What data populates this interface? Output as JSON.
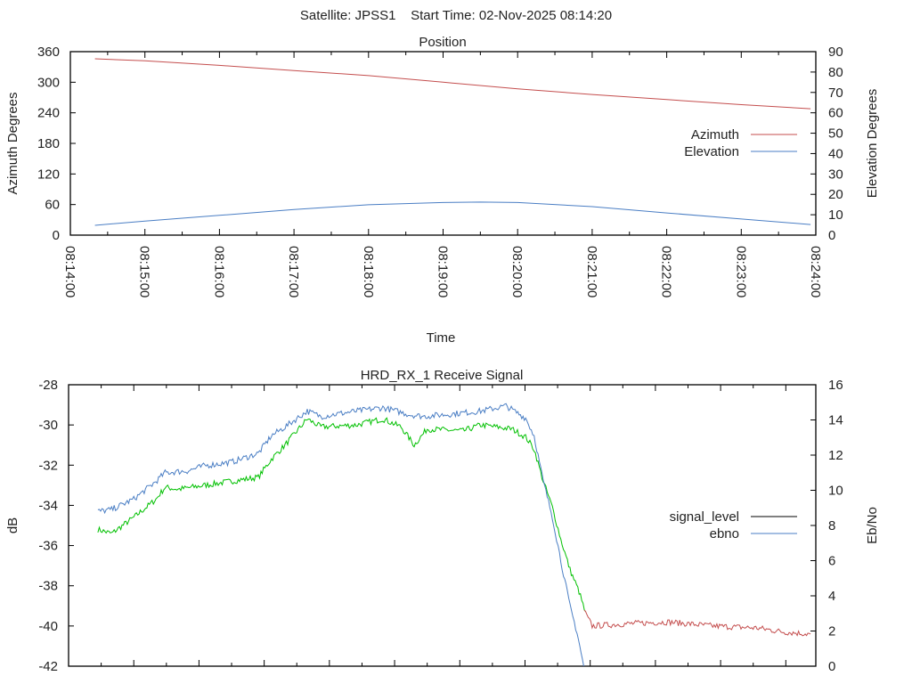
{
  "header": {
    "title": "Satellite: JPSS1    Start Time: 02-Nov-2025 08:14:20"
  },
  "colors": {
    "azimuth": "#c44e4e",
    "elevation": "#4a7ec4",
    "signal_locked": "#00c000",
    "signal_unlocked": "#c44e4e",
    "ebno": "#4a7ec4",
    "legend_signal": "#000000"
  },
  "chart_data": [
    {
      "type": "line",
      "title": "Position",
      "xlabel": "Time",
      "ylabel": "Azimuth Degrees",
      "y2label": "Elevation Degrees",
      "x_unit": "minutes after 08:14:00",
      "xlim": [
        0,
        10
      ],
      "ylim": [
        0,
        360
      ],
      "y2lim": [
        0,
        90
      ],
      "xticks": [
        0,
        1,
        2,
        3,
        4,
        5,
        6,
        7,
        8,
        9,
        10
      ],
      "xtick_labels": [
        "08:14:00",
        "08:15:00",
        "08:16:00",
        "08:17:00",
        "08:18:00",
        "08:19:00",
        "08:20:00",
        "08:21:00",
        "08:22:00",
        "08:23:00",
        "08:24:00"
      ],
      "yticks": [
        0,
        60,
        120,
        180,
        240,
        300,
        360
      ],
      "y2ticks": [
        0,
        10,
        20,
        30,
        40,
        50,
        60,
        70,
        80,
        90
      ],
      "legend": "right",
      "series": [
        {
          "name": "Azimuth",
          "axis": "y",
          "x": [
            0.33,
            1,
            2,
            3,
            4,
            5,
            6,
            7,
            8,
            9,
            9.93
          ],
          "values": [
            346,
            342,
            333,
            323,
            313,
            300,
            287,
            276,
            266,
            256,
            248
          ]
        },
        {
          "name": "Elevation",
          "axis": "y2",
          "x": [
            0.33,
            1,
            2,
            3,
            4,
            5,
            5.5,
            6,
            7,
            8,
            9,
            9.93
          ],
          "values": [
            4.8,
            6.9,
            9.7,
            12.6,
            14.9,
            16.0,
            16.2,
            16.0,
            14.0,
            10.9,
            7.9,
            5.2
          ]
        }
      ]
    },
    {
      "type": "line",
      "title": "HRD_RX_1 Receive Signal",
      "ylabel": "dB",
      "y2label": "Eb/No",
      "x_unit": "minutes",
      "xlim": [
        0,
        11.46
      ],
      "ylim": [
        -42,
        -28
      ],
      "y2lim": [
        0,
        16
      ],
      "xticks": [
        1,
        2,
        3,
        4,
        5,
        6,
        7,
        8,
        9,
        10,
        11
      ],
      "yticks": [
        -42,
        -40,
        -38,
        -36,
        -34,
        -32,
        -30,
        -28
      ],
      "y2ticks": [
        0,
        2,
        4,
        6,
        8,
        10,
        12,
        14,
        16
      ],
      "legend": "right",
      "series": [
        {
          "name": "signal_level",
          "axis": "y",
          "unlocked_after": 7.93,
          "x": [
            0.45,
            0.66,
            1.0,
            1.34,
            1.48,
            1.68,
            2.09,
            2.5,
            2.91,
            3.11,
            3.32,
            3.66,
            3.87,
            4.41,
            4.82,
            5.1,
            5.3,
            5.5,
            6.05,
            6.32,
            6.8,
            7.01,
            7.14,
            7.28,
            7.42,
            7.55,
            7.69,
            7.83,
            7.93,
            8.03,
            8.51,
            9.19,
            9.88,
            10.56,
            10.97,
            11.38
          ],
          "values": [
            -35.2,
            -35.4,
            -34.6,
            -33.7,
            -33.1,
            -33.2,
            -33.0,
            -32.8,
            -32.6,
            -31.7,
            -31.0,
            -29.7,
            -30.1,
            -30.0,
            -29.7,
            -30.1,
            -31.0,
            -30.2,
            -30.3,
            -30.0,
            -30.2,
            -30.6,
            -31.2,
            -32.8,
            -34.1,
            -35.7,
            -37.2,
            -38.3,
            -39.4,
            -40.0,
            -39.9,
            -39.8,
            -40.0,
            -40.1,
            -40.3,
            -40.4
          ]
        },
        {
          "name": "ebno",
          "axis": "y2",
          "x": [
            0.45,
            0.66,
            1.0,
            1.34,
            1.48,
            1.82,
            2.09,
            2.5,
            2.91,
            3.11,
            3.32,
            3.66,
            3.87,
            4.41,
            4.82,
            5.23,
            5.44,
            5.77,
            6.32,
            6.71,
            7.01,
            7.14,
            7.28,
            7.42,
            7.55,
            7.69,
            7.8,
            7.9
          ],
          "values": [
            8.8,
            8.9,
            9.5,
            10.5,
            11.0,
            11.1,
            11.4,
            11.6,
            12.1,
            13.1,
            13.6,
            14.5,
            14.2,
            14.5,
            14.7,
            14.3,
            14.2,
            14.3,
            14.5,
            14.8,
            14.1,
            13.1,
            10.5,
            8.5,
            6.0,
            3.4,
            1.9,
            0
          ]
        }
      ]
    }
  ]
}
